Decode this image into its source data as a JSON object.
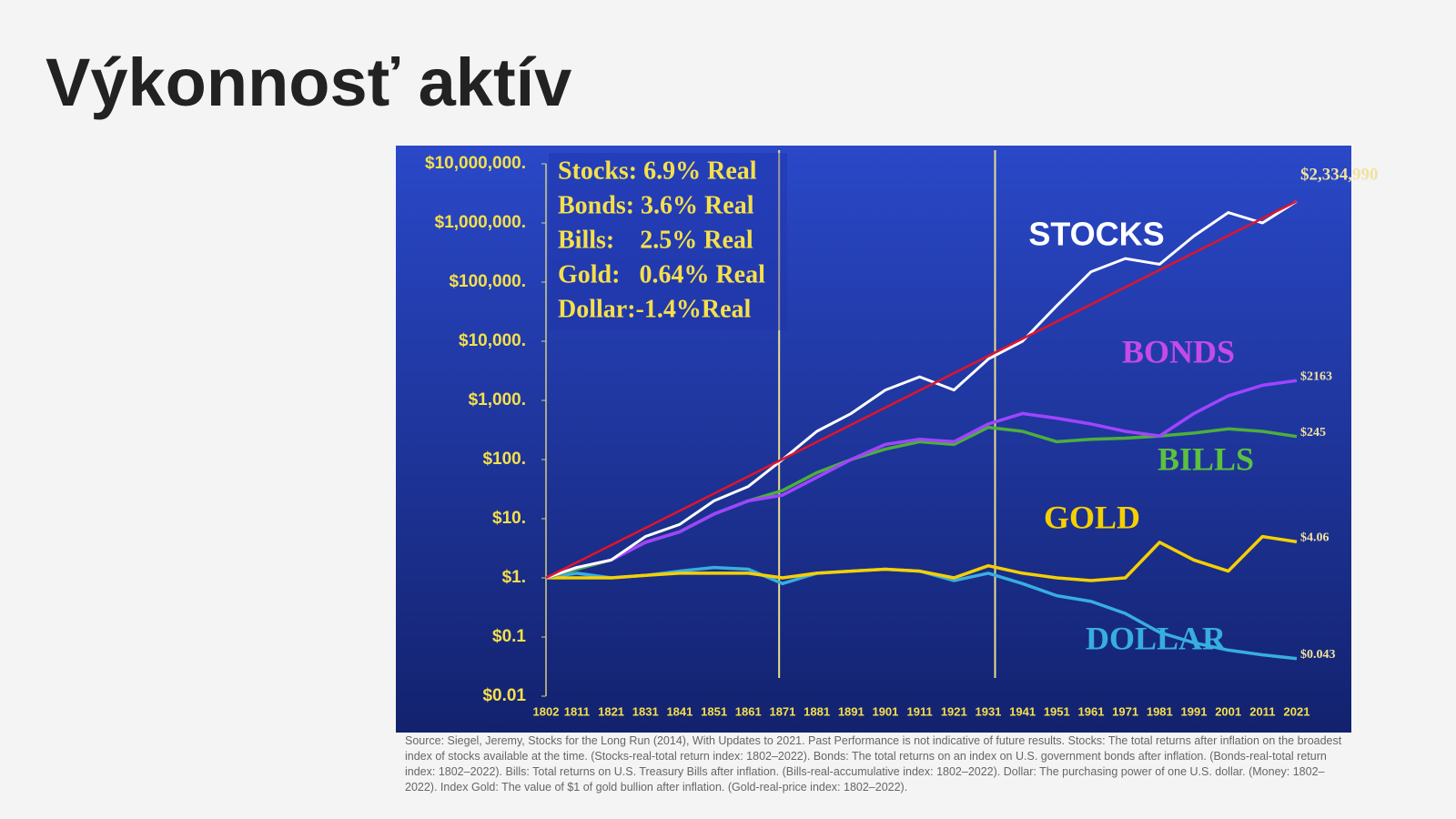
{
  "title": "Výkonnosť aktív",
  "chart_data": {
    "type": "line",
    "log_scale": true,
    "x": [
      1802,
      1811,
      1821,
      1831,
      1841,
      1851,
      1861,
      1871,
      1881,
      1891,
      1901,
      1911,
      1921,
      1931,
      1941,
      1951,
      1961,
      1971,
      1981,
      1991,
      2001,
      2011,
      2021
    ],
    "xlim": [
      1802,
      2021
    ],
    "xticks": [
      1802,
      1811,
      1821,
      1831,
      1841,
      1851,
      1861,
      1871,
      1881,
      1891,
      1901,
      1911,
      1921,
      1931,
      1941,
      1951,
      1961,
      1971,
      1981,
      1991,
      2001,
      2011,
      2021
    ],
    "ylim": [
      0.01,
      10000000
    ],
    "yticks": [
      {
        "value": 10000000,
        "label": "$10,000,000."
      },
      {
        "value": 1000000,
        "label": "$1,000,000."
      },
      {
        "value": 100000,
        "label": "$100,000."
      },
      {
        "value": 10000,
        "label": "$10,000."
      },
      {
        "value": 1000,
        "label": "$1,000."
      },
      {
        "value": 100,
        "label": "$100."
      },
      {
        "value": 10,
        "label": "$10."
      },
      {
        "value": 1,
        "label": "$1."
      },
      {
        "value": 0.1,
        "label": "$0.1"
      },
      {
        "value": 0.01,
        "label": "$0.01"
      }
    ],
    "vlines": [
      1870,
      1933
    ],
    "returns_box": [
      "Stocks: 6.9% Real",
      "Bonds: 3.6% Real",
      "Bills:    2.5% Real",
      "Gold:   0.64% Real",
      "Dollar:-1.4%Real"
    ],
    "trend": {
      "color": "#e0142c",
      "x": [
        1802,
        2021
      ],
      "values": [
        1,
        2334990
      ]
    },
    "series": [
      {
        "name": "STOCKS",
        "color": "#ffffff",
        "label_color": "#ffffff",
        "values": [
          1,
          1.5,
          2,
          5,
          8,
          20,
          35,
          100,
          300,
          600,
          1500,
          2500,
          1500,
          5000,
          10000,
          40000,
          150000,
          250000,
          200000,
          600000,
          1500000,
          1000000,
          2334990
        ],
        "value_labels": [
          null,
          null,
          null,
          null,
          null,
          null,
          null,
          null,
          null,
          null,
          null,
          null,
          null,
          null,
          null,
          null,
          null,
          null,
          null,
          null,
          null,
          null,
          "$2,334,990"
        ]
      },
      {
        "name": "BONDS",
        "color": "#a044ff",
        "label_color": "#c54ae8",
        "values": [
          1,
          1.5,
          2,
          4,
          6,
          12,
          20,
          25,
          50,
          100,
          180,
          220,
          200,
          400,
          600,
          500,
          400,
          300,
          250,
          600,
          1200,
          1800,
          2163
        ],
        "value_labels": [
          null,
          null,
          null,
          null,
          null,
          null,
          null,
          null,
          null,
          null,
          null,
          null,
          null,
          null,
          null,
          null,
          null,
          null,
          null,
          null,
          null,
          null,
          "$2163"
        ]
      },
      {
        "name": "BILLS",
        "color": "#4caf3c",
        "label_color": "#5cc040",
        "values": [
          1,
          1.4,
          2,
          4,
          6,
          12,
          20,
          30,
          60,
          100,
          150,
          200,
          180,
          350,
          300,
          200,
          220,
          230,
          250,
          280,
          330,
          300,
          245
        ],
        "value_labels": [
          null,
          null,
          null,
          null,
          null,
          null,
          null,
          null,
          null,
          null,
          null,
          null,
          null,
          null,
          null,
          null,
          null,
          null,
          null,
          null,
          null,
          null,
          "$245"
        ]
      },
      {
        "name": "GOLD",
        "color": "#f5d000",
        "label_color": "#f5d000",
        "values": [
          1,
          1,
          1,
          1.1,
          1.2,
          1.2,
          1.2,
          1,
          1.2,
          1.3,
          1.4,
          1.3,
          1,
          1.6,
          1.2,
          1,
          0.9,
          1,
          4,
          2,
          1.3,
          5,
          4.06
        ],
        "value_labels": [
          null,
          null,
          null,
          null,
          null,
          null,
          null,
          null,
          null,
          null,
          null,
          null,
          null,
          null,
          null,
          null,
          null,
          null,
          null,
          null,
          null,
          null,
          "$4.06"
        ]
      },
      {
        "name": "DOLLAR",
        "color": "#38aee0",
        "label_color": "#38aee0",
        "values": [
          1,
          1.2,
          1,
          1.1,
          1.3,
          1.5,
          1.4,
          0.8,
          1.2,
          1.3,
          1.4,
          1.3,
          0.9,
          1.2,
          0.8,
          0.5,
          0.4,
          0.25,
          0.12,
          0.08,
          0.06,
          0.05,
          0.043
        ],
        "value_labels": [
          null,
          null,
          null,
          null,
          null,
          null,
          null,
          null,
          null,
          null,
          null,
          null,
          null,
          null,
          null,
          null,
          null,
          null,
          null,
          null,
          null,
          null,
          "$0.043"
        ]
      }
    ]
  },
  "source": "Source: Siegel, Jeremy, Stocks for the Long Run (2014), With Updates to 2021. Past Performance is not indicative of future results. Stocks: The total returns after inflation on the broadest index of stocks available at the time. (Stocks-real-total return index: 1802–2022). Bonds: The total returns on an index on U.S. government bonds after inflation. (Bonds-real-total return index: 1802–2022). Bills: Total returns on U.S. Treasury Bills after inflation. (Bills-real-accumulative index: 1802–2022). Dollar: The purchasing power of one U.S. dollar. (Money: 1802–2022). Index Gold: The value of $1 of gold bullion after inflation. (Gold-real-price index: 1802–2022)."
}
